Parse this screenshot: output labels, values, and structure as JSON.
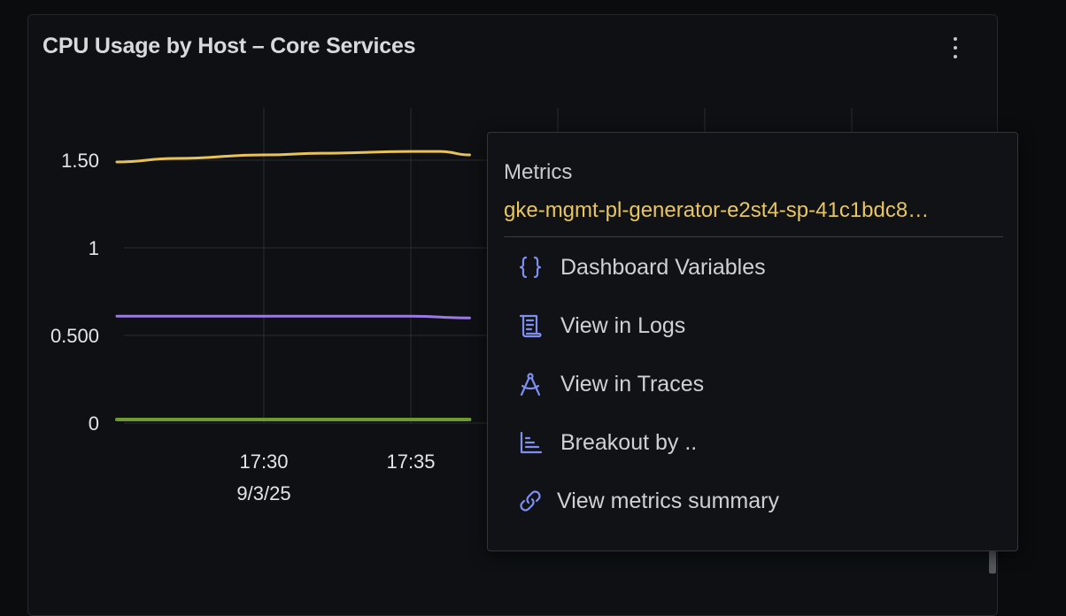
{
  "panel": {
    "title": "CPU Usage by Host – Core Services"
  },
  "chart_data": {
    "type": "line",
    "title": "CPU Usage by Host – Core Services",
    "xlabel": "",
    "ylabel": "",
    "y_ticks": [
      "0",
      "0.500",
      "1",
      "1.50"
    ],
    "x_ticks": [
      {
        "time": "17:30",
        "date": "9/3/25"
      },
      {
        "time": "17:35",
        "date": ""
      }
    ],
    "ylim": [
      0,
      1.8
    ],
    "x_range": [
      "17:25",
      "17:45"
    ],
    "grid": true,
    "series": [
      {
        "color": "#e8c35a",
        "x": [
          "17:25",
          "17:27",
          "17:30",
          "17:32",
          "17:35",
          "17:36",
          "17:37"
        ],
        "values": [
          1.49,
          1.51,
          1.53,
          1.54,
          1.55,
          1.55,
          1.53
        ]
      },
      {
        "color": "#9b7ae6",
        "x": [
          "17:25",
          "17:30",
          "17:35",
          "17:37"
        ],
        "values": [
          0.61,
          0.61,
          0.61,
          0.6
        ]
      },
      {
        "color": "#6e9a2f",
        "x": [
          "17:25",
          "17:30",
          "17:35",
          "17:37"
        ],
        "values": [
          0.02,
          0.02,
          0.02,
          0.02
        ]
      }
    ]
  },
  "popover": {
    "heading": "Metrics",
    "series_name": "gke-mgmt-pl-generator-e2st4-sp-41c1bdc8…",
    "accent": "#7e8ff0",
    "items": [
      {
        "label": "Dashboard Variables",
        "icon": "braces-icon"
      },
      {
        "label": "View in Logs",
        "icon": "logs-icon"
      },
      {
        "label": "View in Traces",
        "icon": "traces-icon"
      },
      {
        "label": "Breakout by ..",
        "icon": "breakout-icon"
      },
      {
        "label": "View metrics summary",
        "icon": "link-icon"
      }
    ]
  }
}
